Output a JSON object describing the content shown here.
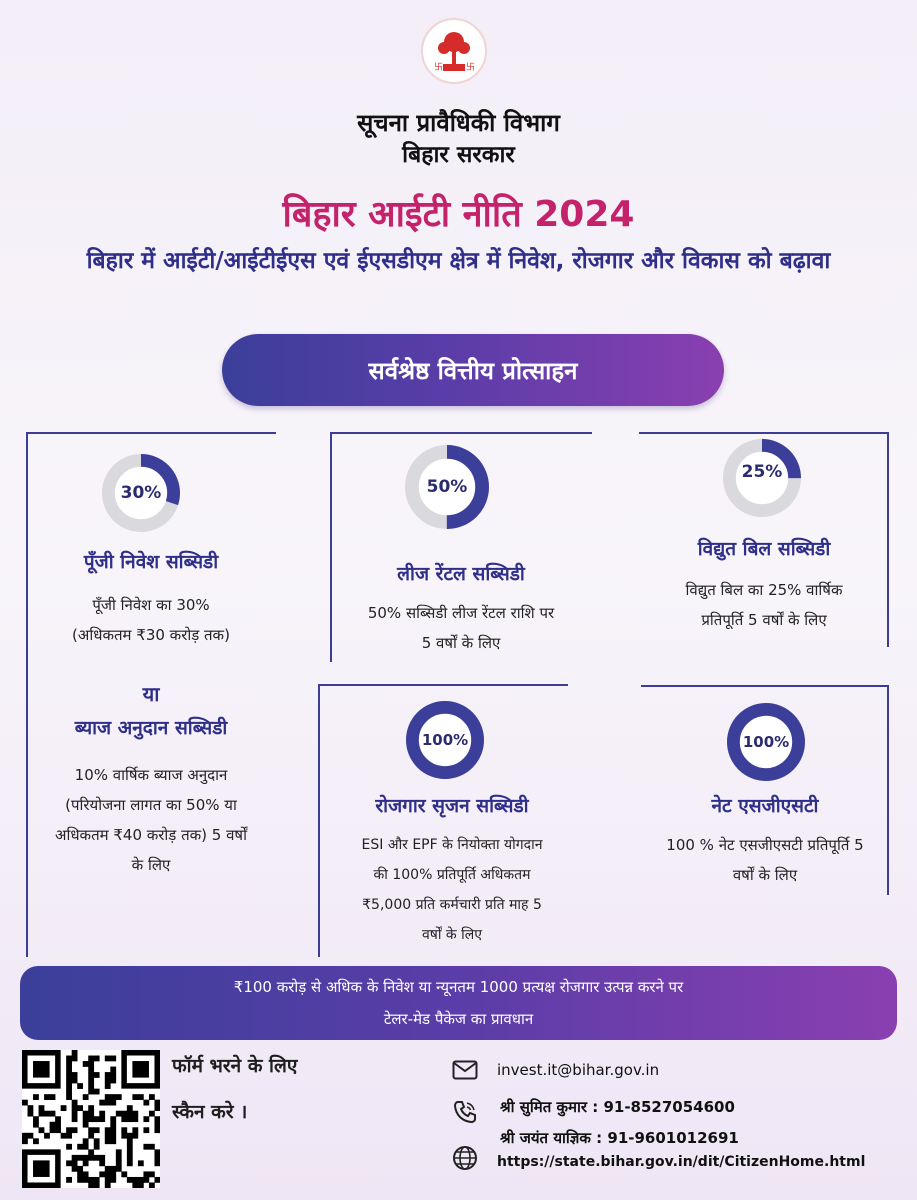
{
  "header": {
    "department_line1": "सूचना प्रावैधिकी विभाग",
    "department_line2": "बिहार सरकार",
    "title": "बिहार आईटी नीति 2024",
    "subtitle": "बिहार में आईटी/आईटीईएस एवं ईएसडीएम क्षेत्र में निवेश, रोजगार और विकास को बढ़ावा"
  },
  "section_pill": "सर्वश्रेष्ठ वित्तीय प्रोत्साहन",
  "accent_colors": {
    "title": "#c4226b",
    "heading": "#2f2f8a",
    "ring_fill": "#3b3f9a",
    "ring_track": "#d9d9de"
  },
  "cards": [
    {
      "percent_label": "30%",
      "percent": 30,
      "title": "पूँजी निवेश सब्सिडी",
      "text_lines": [
        "पूँजी निवेश का 30%",
        "(अधिकतम ₹30 करोड़ तक)"
      ],
      "or_label": "या",
      "alt_title": "ब्याज अनुदान सब्सिडी",
      "alt_text_lines": [
        "10% वार्षिक ब्याज अनुदान",
        "(परियोजना लागत का 50% या",
        "अधिकतम ₹40 करोड़ तक) 5 वर्षों",
        "के लिए"
      ]
    },
    {
      "percent_label": "50%",
      "percent": 50,
      "title": "लीज रेंटल सब्सिडी",
      "text_lines": [
        "50% सब्सिडी लीज रेंटल राशि पर",
        "5 वर्षों के लिए"
      ]
    },
    {
      "percent_label": "25%",
      "percent": 25,
      "title": "विद्युत बिल सब्सिडी",
      "text_lines": [
        "विद्युत बिल का 25% वार्षिक",
        "प्रतिपूर्ति 5 वर्षों के लिए"
      ]
    },
    {
      "percent_label": "100%",
      "percent": 100,
      "title": "रोजगार सृजन सब्सिडी",
      "text_lines": [
        "ESI और EPF के नियोक्ता योगदान",
        "की 100% प्रतिपूर्ति अधिकतम",
        "₹5,000 प्रति कर्मचारी प्रति माह 5",
        "वर्षों के लिए"
      ]
    },
    {
      "percent_label": "100%",
      "percent": 100,
      "title": "नेट एसजीएसटी",
      "text_lines": [
        "100 % नेट एसजीएसटी प्रतिपूर्ति 5",
        "वर्षों के लिए"
      ]
    }
  ],
  "banner": {
    "line1": "₹100 करोड़ से अधिक के निवेश या न्यूनतम 1000 प्रत्यक्ष रोजगार उत्पन्न करने पर",
    "line2": "टेलर-मेड पैकेज का प्रावधान"
  },
  "footer": {
    "scan_line1": "फॉर्म भरने के लिए",
    "scan_line2": "स्कैन करे ।",
    "email": "invest.it@bihar.gov.in",
    "phone1": "श्री सुमित कुमार : 91-8527054600",
    "phone2": "श्री जयंत याज्ञिक : 91-9601012691",
    "website": "https://state.bihar.gov.in/dit/CitizenHome.html",
    "icons": [
      "mail-icon",
      "phone-icon",
      "globe-icon"
    ]
  }
}
